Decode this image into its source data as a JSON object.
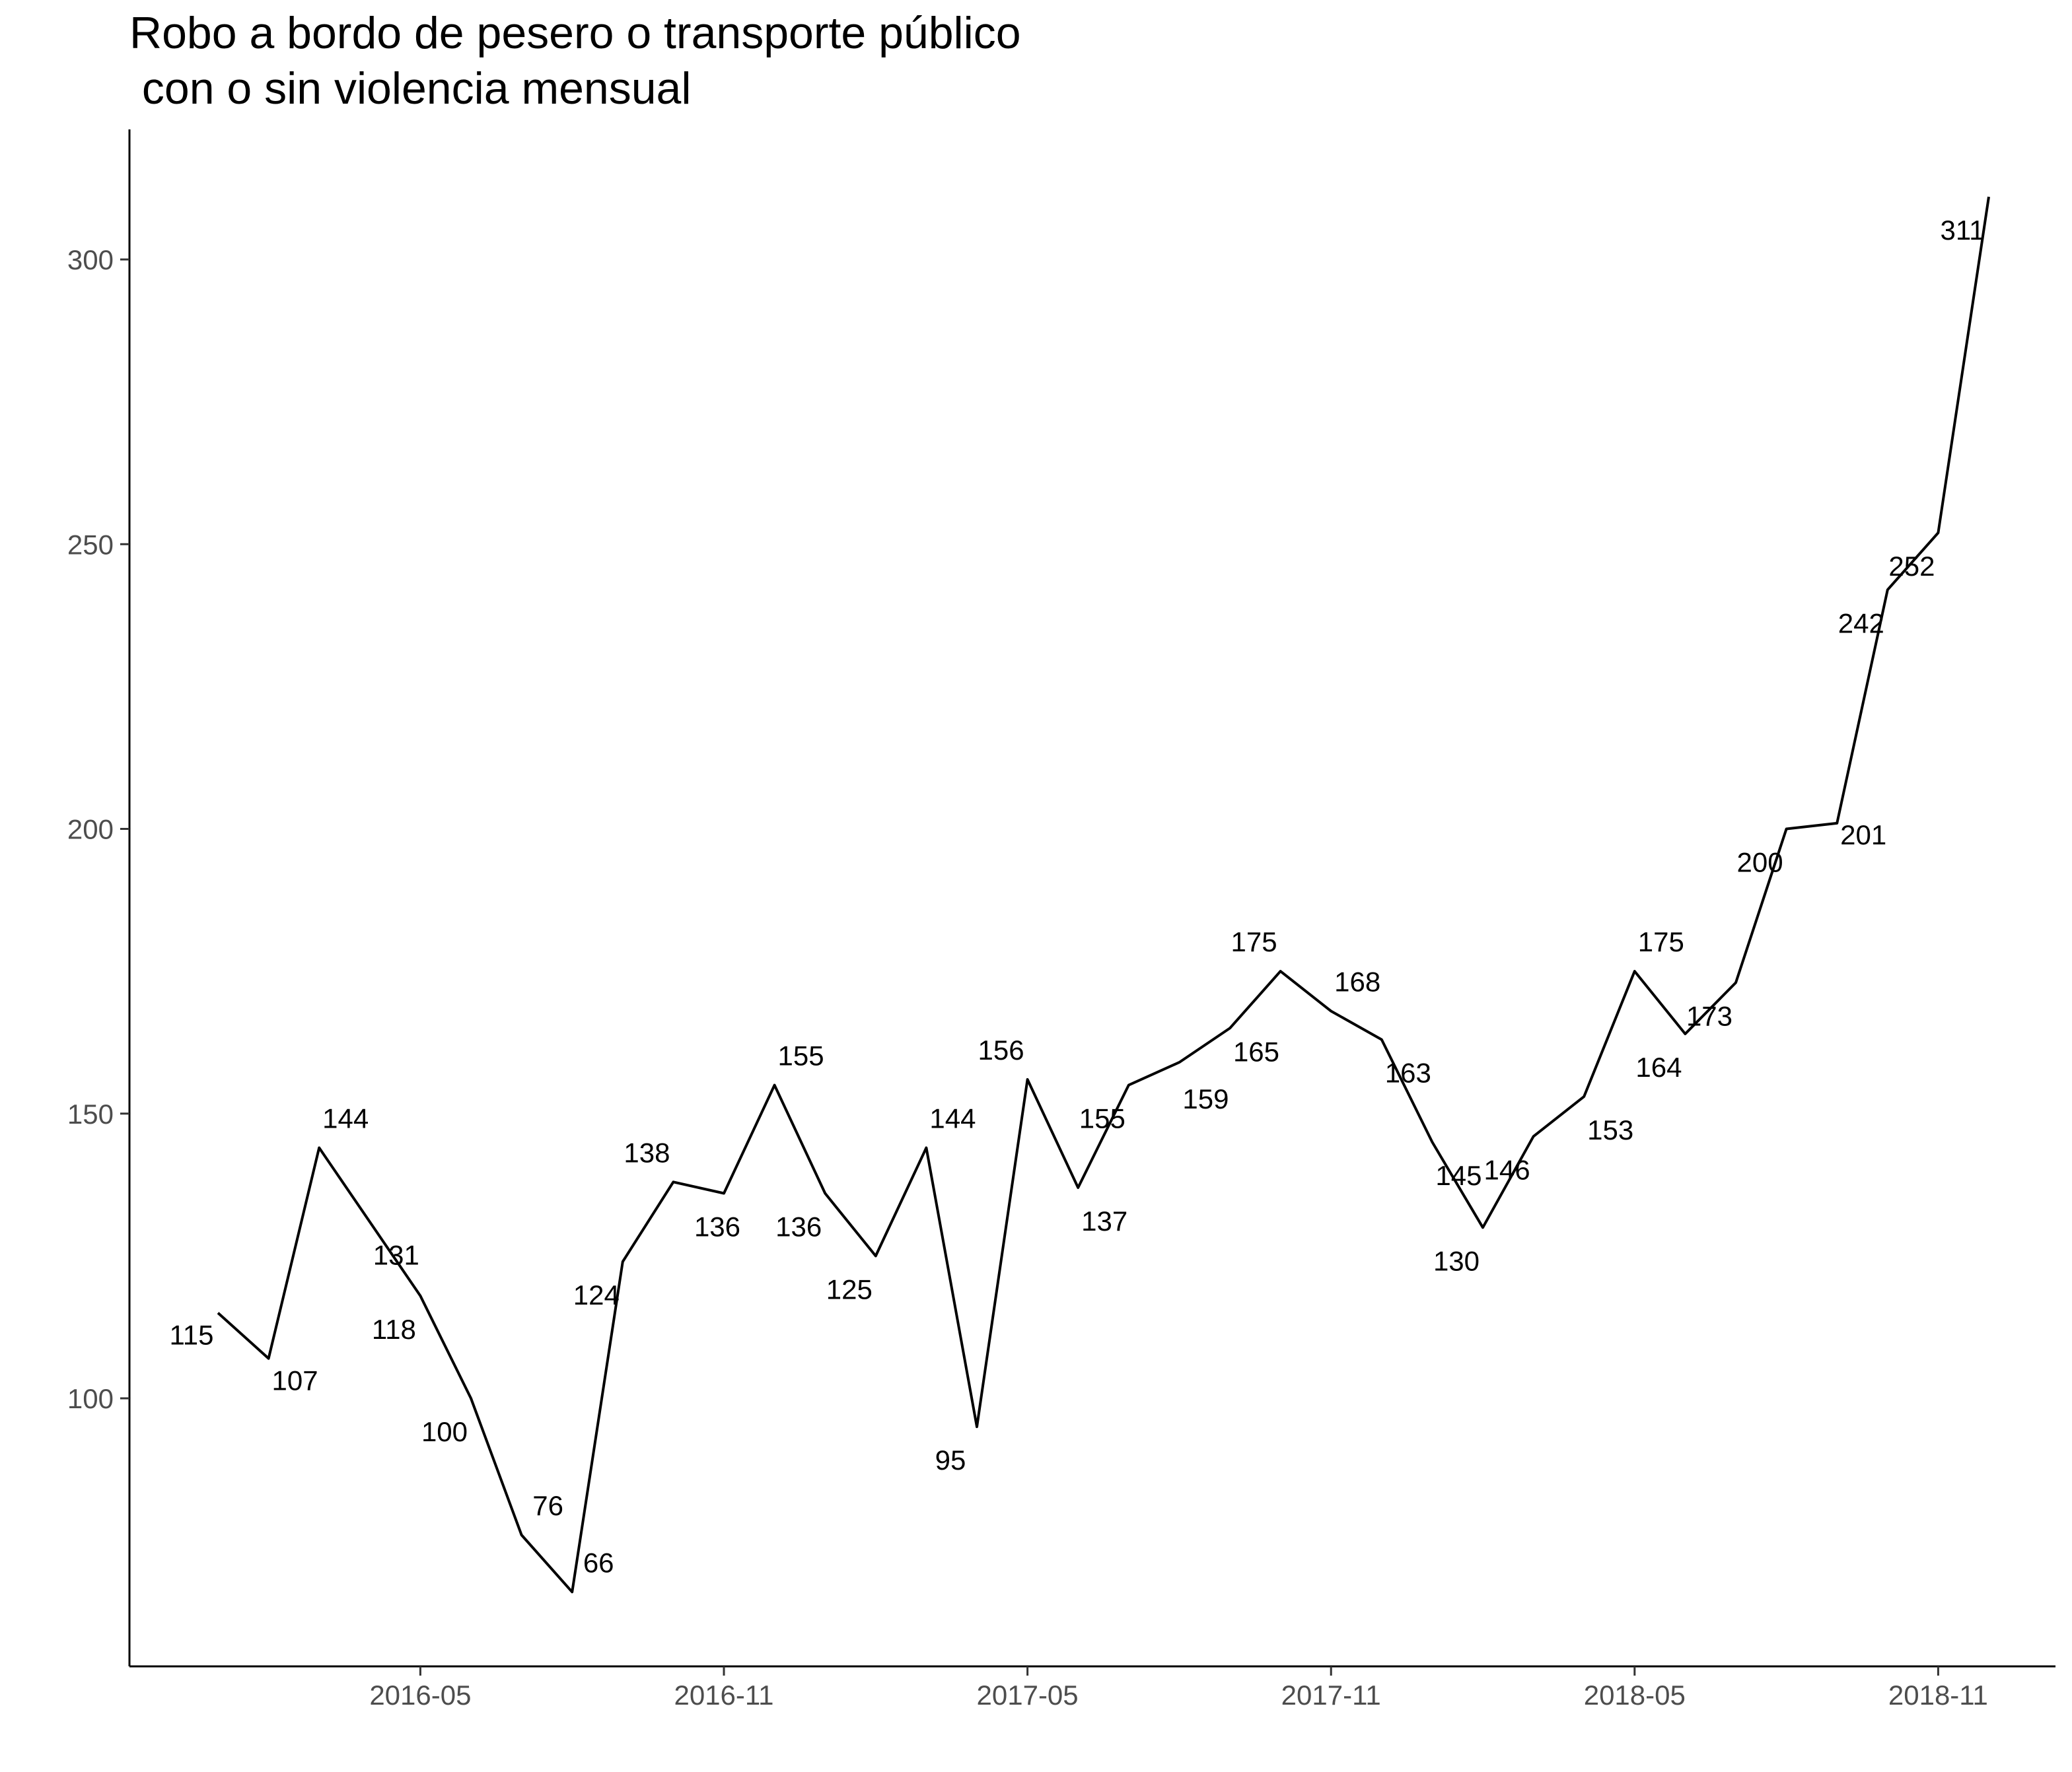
{
  "chart_data": {
    "type": "line",
    "title_line1": "Robo a bordo de pesero o transporte público",
    "title_line2": " con o sin violencia mensual",
    "xlabel": "",
    "ylabel": "",
    "ylim": [
      53,
      322
    ],
    "y_ticks": [
      100,
      150,
      200,
      250,
      300
    ],
    "x_ticks": [
      "2016-05",
      "2016-11",
      "2017-05",
      "2017-11",
      "2018-05",
      "2018-11"
    ],
    "grid": false,
    "line_color": "#000000",
    "x": [
      "2016-01",
      "2016-02",
      "2016-03",
      "2016-04",
      "2016-05",
      "2016-06",
      "2016-07",
      "2016-08",
      "2016-09",
      "2016-10",
      "2016-11",
      "2016-12",
      "2017-01",
      "2017-02",
      "2017-03",
      "2017-04",
      "2017-05",
      "2017-06",
      "2017-07",
      "2017-08",
      "2017-09",
      "2017-10",
      "2017-11",
      "2017-12",
      "2018-01",
      "2018-02",
      "2018-03",
      "2018-04",
      "2018-05",
      "2018-06",
      "2018-07",
      "2018-08",
      "2018-09",
      "2018-10",
      "2018-11",
      "2018-12"
    ],
    "values": [
      115,
      107,
      144,
      131,
      118,
      100,
      76,
      66,
      124,
      138,
      136,
      155,
      136,
      125,
      144,
      95,
      156,
      137,
      155,
      159,
      165,
      175,
      168,
      163,
      145,
      130,
      146,
      153,
      175,
      164,
      173,
      200,
      201,
      242,
      252,
      311
    ],
    "labels": [
      "115",
      "107",
      "144",
      "131",
      "118",
      "100",
      "76",
      "66",
      "124",
      "138",
      "136",
      "155",
      "136",
      "125",
      "144",
      "95",
      "156",
      "137",
      "155",
      "159",
      "165",
      "175",
      "168",
      "163",
      "145",
      "130",
      "146",
      "153",
      "175",
      "164",
      "173",
      "200",
      "201",
      "242",
      "252",
      "311"
    ]
  }
}
